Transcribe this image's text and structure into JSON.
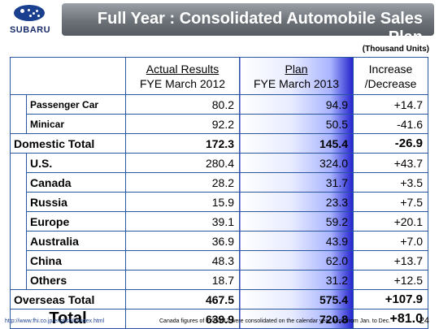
{
  "logo": {
    "text": "SUBARU"
  },
  "title": "Full Year : Consolidated Automobile Sales Plan",
  "units": "(Thousand Units)",
  "headers": {
    "actual_line1": "Actual Results",
    "actual_line2": "FYE March 2012",
    "plan_line1": "Plan",
    "plan_line2": "FYE March 2013",
    "change_line1": "Increase",
    "change_line2": "/Decrease"
  },
  "domestic": [
    {
      "label": "Passenger Car",
      "actual": "80.2",
      "plan": "94.9",
      "change": "+14.7"
    },
    {
      "label": "Minicar",
      "actual": "92.2",
      "plan": "50.5",
      "change": "-41.6"
    }
  ],
  "domestic_total": {
    "label": "Domestic Total",
    "actual": "172.3",
    "plan": "145.4",
    "change": "-26.9"
  },
  "overseas": [
    {
      "label": "U.S.",
      "actual": "280.4",
      "plan": "324.0",
      "change": "+43.7"
    },
    {
      "label": "Canada",
      "actual": "28.2",
      "plan": "31.7",
      "change": "+3.5"
    },
    {
      "label": "Russia",
      "actual": "15.9",
      "plan": "23.3",
      "change": "+7.5"
    },
    {
      "label": "Europe",
      "actual": "39.1",
      "plan": "59.2",
      "change": "+20.1"
    },
    {
      "label": "Australia",
      "actual": "36.9",
      "plan": "43.9",
      "change": "+7.0"
    },
    {
      "label": "China",
      "actual": "48.3",
      "plan": "62.0",
      "change": "+13.7"
    },
    {
      "label": "Others",
      "actual": "18.7",
      "plan": "31.2",
      "change": "+12.5"
    }
  ],
  "overseas_total": {
    "label": "Overseas Total",
    "actual": "467.5",
    "plan": "575.4",
    "change": "+107.9"
  },
  "total": {
    "label": "Total",
    "actual": "639.9",
    "plan": "720.8",
    "change": "+81.0"
  },
  "footer": {
    "url": "http://www.fhi.co.jp/english/ir/index.html",
    "note": "Canada figures of FYE2012 were consolidated on the calendar year basis from Jan. to Dec.",
    "page": "24"
  },
  "colors": {
    "border": "#2a55a0",
    "negative": "#e00000",
    "plan_gradient_end": "#2222cc",
    "title_bar": "#6c7278"
  }
}
